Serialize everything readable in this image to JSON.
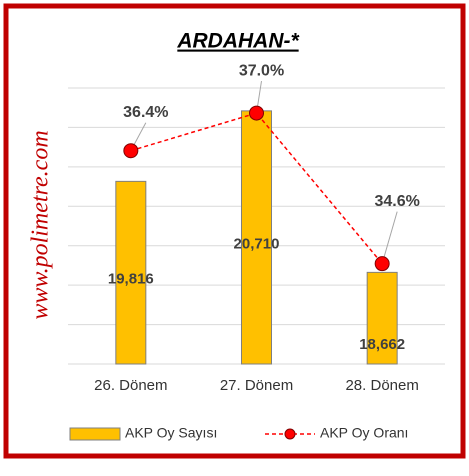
{
  "chart_data": {
    "type": "combo",
    "title": "ARDAHAN-*",
    "annotations": [
      "www.polimetre.com"
    ],
    "categories": [
      "26. Dönem",
      "27. Dönem",
      "28. Dönem"
    ],
    "series": [
      {
        "name": "AKP Oy Sayısı",
        "type": "bar",
        "color": "#FFC000",
        "values": [
          19816,
          20710,
          18662
        ],
        "value_labels": [
          "19,816",
          "20,710",
          "18,662"
        ]
      },
      {
        "name": "AKP Oy Oranı",
        "type": "line",
        "axis": "y2",
        "color": "#FF0000",
        "values": [
          36.4,
          37.0,
          34.6
        ],
        "value_labels": [
          "36.4%",
          "37.0%",
          "34.6%"
        ]
      }
    ],
    "ylim": [
      17500,
      21000
    ],
    "yticks": [
      17500,
      18000,
      18500,
      19000,
      19500,
      20000,
      20500,
      21000
    ],
    "y2lim": [
      33,
      37.4
    ],
    "grid": true,
    "legend": "bottom"
  }
}
